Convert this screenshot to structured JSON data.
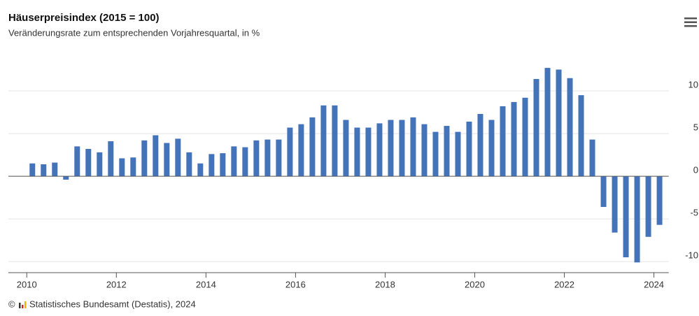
{
  "chart_data": {
    "type": "bar",
    "title": "Häuserpreisindex (2015 = 100)",
    "subtitle": "Veränderungsrate zum entsprechenden Vorjahresquartal, in %",
    "source": "Statistisches Bundesamt (Destatis), 2024",
    "copyright": "©",
    "color": "#4573ba",
    "x": [
      2010.125,
      2010.375,
      2010.625,
      2010.875,
      2011.125,
      2011.375,
      2011.625,
      2011.875,
      2012.125,
      2012.375,
      2012.625,
      2012.875,
      2013.125,
      2013.375,
      2013.625,
      2013.875,
      2014.125,
      2014.375,
      2014.625,
      2014.875,
      2015.125,
      2015.375,
      2015.625,
      2015.875,
      2016.125,
      2016.375,
      2016.625,
      2016.875,
      2017.125,
      2017.375,
      2017.625,
      2017.875,
      2018.125,
      2018.375,
      2018.625,
      2018.875,
      2019.125,
      2019.375,
      2019.625,
      2019.875,
      2020.125,
      2020.375,
      2020.625,
      2020.875,
      2021.125,
      2021.375,
      2021.625,
      2021.875,
      2022.125,
      2022.375,
      2022.625,
      2022.875,
      2023.125,
      2023.375,
      2023.625,
      2023.875,
      2024.125
    ],
    "values": [
      1.5,
      1.4,
      1.6,
      -0.4,
      3.5,
      3.2,
      2.8,
      4.1,
      2.1,
      2.2,
      4.2,
      4.8,
      3.9,
      4.4,
      2.8,
      1.5,
      2.6,
      2.7,
      3.5,
      3.4,
      4.2,
      4.3,
      4.3,
      5.7,
      6.1,
      6.9,
      8.3,
      8.3,
      6.6,
      5.7,
      5.7,
      6.2,
      6.6,
      6.6,
      6.9,
      6.1,
      5.2,
      5.9,
      5.2,
      6.4,
      7.3,
      6.6,
      8.2,
      8.7,
      9.2,
      11.4,
      12.7,
      12.5,
      11.5,
      9.5,
      4.3,
      -3.6,
      -6.6,
      -9.5,
      -10.1,
      -7.1,
      -5.7
    ],
    "xlim": [
      2009.59,
      2024.33
    ],
    "xticks": [
      2010,
      2012,
      2014,
      2016,
      2018,
      2020,
      2022,
      2024
    ],
    "ylim": [
      -11.3,
      14.1
    ],
    "yticks": [
      -10,
      -5,
      0,
      5,
      10
    ],
    "grid": true
  }
}
